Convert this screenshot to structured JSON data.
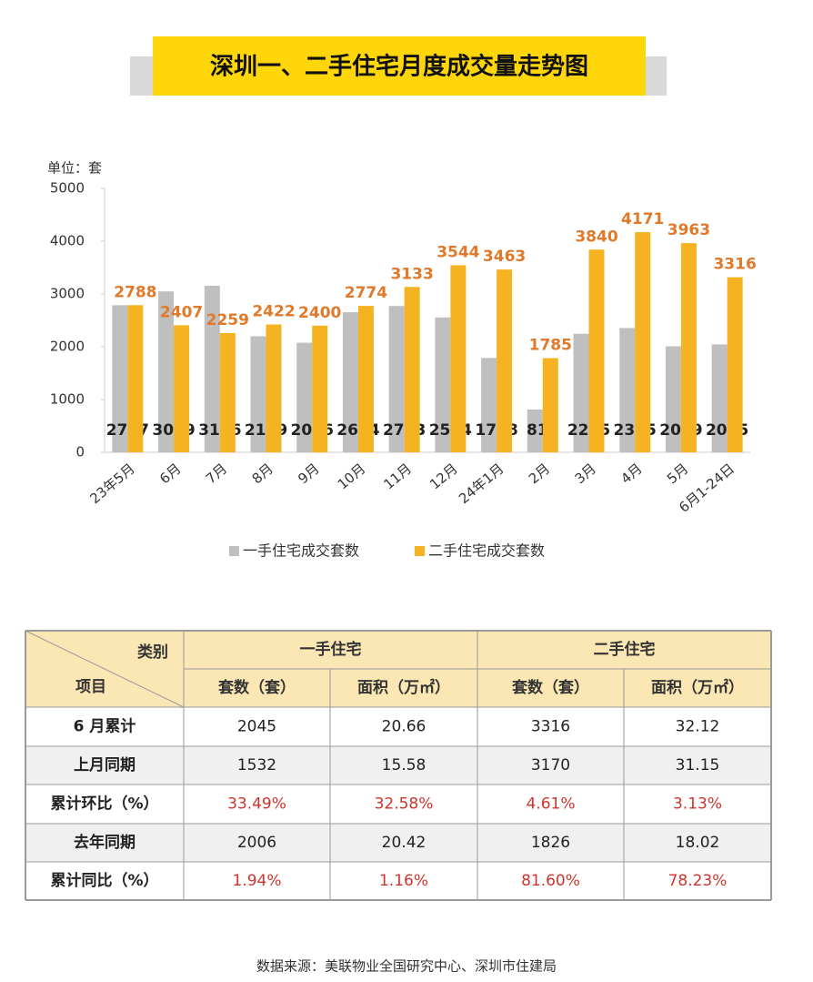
{
  "chart_data": {
    "type": "bar",
    "title": "深圳一、二手住宅月度成交量走势图",
    "unit_label": "单位：套",
    "categories": [
      "23年5月",
      "6月",
      "7月",
      "8月",
      "9月",
      "10月",
      "11月",
      "12月",
      "24年1月",
      "2月",
      "3月",
      "4月",
      "5月",
      "6月1-24日"
    ],
    "series": [
      {
        "name": "一手住宅成交套数",
        "color": "#bfbfbf",
        "values": [
          2787,
          3049,
          3156,
          2199,
          2076,
          2654,
          2773,
          2554,
          1788,
          811,
          2245,
          2355,
          2009,
          2045
        ]
      },
      {
        "name": "二手住宅成交套数",
        "color": "#f5b321",
        "values": [
          2788,
          2407,
          2259,
          2422,
          2400,
          2774,
          3133,
          3544,
          3463,
          1785,
          3840,
          4171,
          3963,
          3316
        ]
      }
    ],
    "ylim": [
      0,
      5000
    ],
    "yticks": [
      0,
      1000,
      2000,
      3000,
      4000,
      5000
    ],
    "grid": false
  },
  "table": {
    "corner": [
      "类别",
      "项目"
    ],
    "groups": [
      "一手住宅",
      "二手住宅"
    ],
    "subheaders": [
      "套数（套）",
      "面积（万㎡）",
      "套数（套）",
      "面积（万㎡）"
    ],
    "rows": [
      [
        "6 月累计",
        "2045",
        "20.66",
        "3316",
        "32.12"
      ],
      [
        "上月同期",
        "1532",
        "15.58",
        "3170",
        "31.15"
      ],
      [
        "累计环比（%）",
        "33.49%",
        "32.58%",
        "4.61%",
        "3.13%"
      ],
      [
        "去年同期",
        "2006",
        "20.42",
        "1826",
        "18.02"
      ],
      [
        "累计同比（%）",
        "1.94%",
        "1.16%",
        "81.60%",
        "78.23%"
      ]
    ]
  },
  "source": "数据来源：美联物业全国研究中心、深圳市住建局"
}
